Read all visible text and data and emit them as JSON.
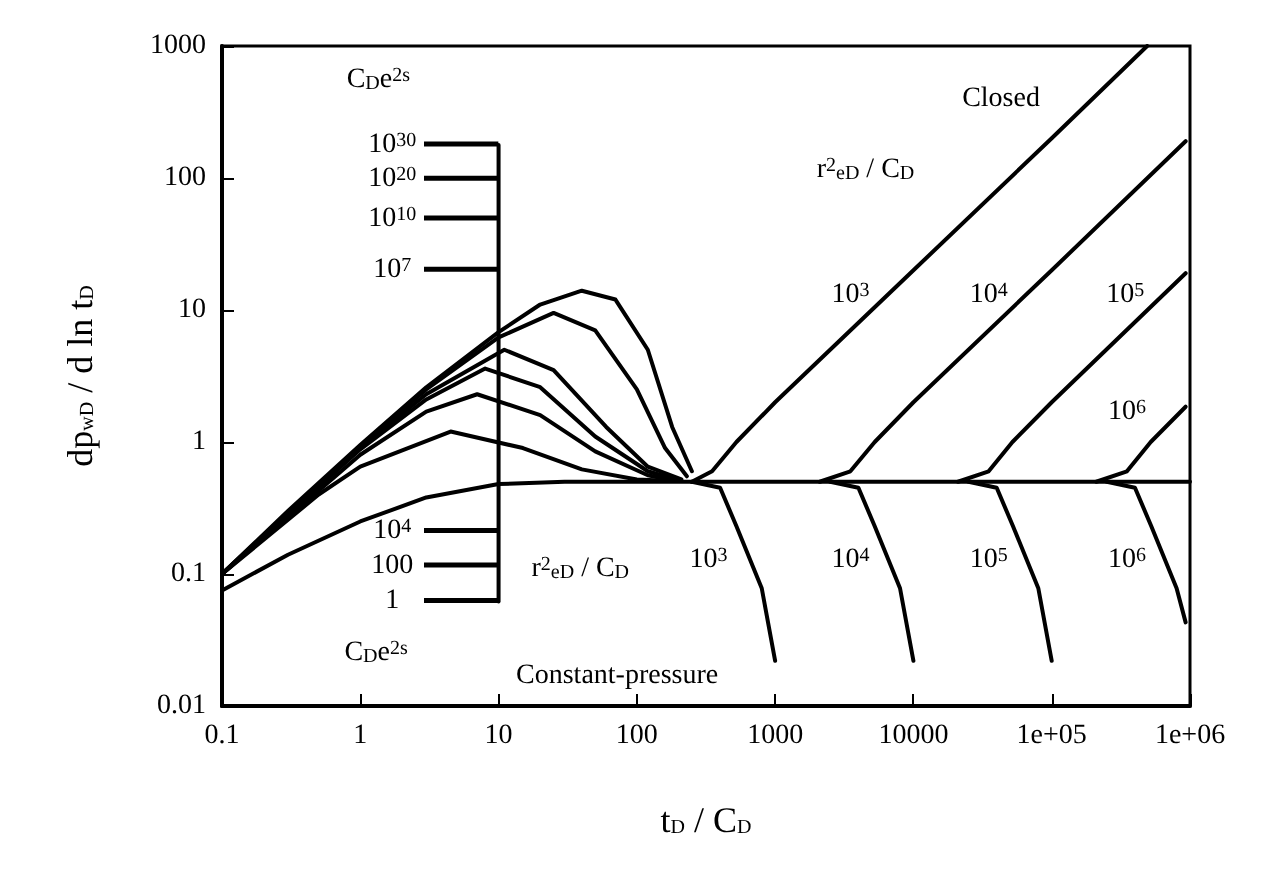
{
  "chart_data": {
    "type": "line",
    "xlabel": "t$_{D}$ / C$_{D}$",
    "ylabel": "dp$_{wD}$ / d ln t$_{D}$",
    "log": "xy",
    "grid": false,
    "marker": "none",
    "line_style": "solid",
    "xlim": [
      0.1,
      1000000
    ],
    "ylim": [
      0.01,
      1000
    ],
    "xticks": [
      0.1,
      1,
      10,
      100,
      1000,
      10000,
      {
        "value": 100000,
        "label": "1e+05"
      },
      {
        "value": 1000000,
        "label": "1e+06"
      }
    ],
    "yticks": [
      0.01,
      0.1,
      1,
      10,
      100,
      1000
    ],
    "series": [
      {
        "color": "#000000",
        "x": [
          0.1,
          0.3,
          1,
          3,
          10,
          20,
          40,
          70,
          120,
          180,
          250
        ],
        "values": [
          0.1,
          0.3,
          0.95,
          2.6,
          6.8,
          11,
          14,
          12,
          5,
          1.3,
          0.6
        ]
      },
      {
        "color": "#000000",
        "x": [
          0.1,
          1,
          3,
          10,
          25,
          50,
          100,
          160,
          230
        ],
        "values": [
          0.1,
          0.93,
          2.5,
          6.2,
          9.5,
          7,
          2.5,
          0.9,
          0.55
        ]
      },
      {
        "color": "#000000",
        "x": [
          0.1,
          1,
          3,
          11,
          25,
          60,
          120,
          210
        ],
        "values": [
          0.1,
          0.9,
          2.3,
          5,
          3.5,
          1.3,
          0.65,
          0.52
        ]
      },
      {
        "color": "#000000",
        "x": [
          0.1,
          1,
          3,
          8,
          20,
          50,
          120,
          190
        ],
        "values": [
          0.1,
          0.88,
          2.1,
          3.6,
          2.6,
          1.1,
          0.6,
          0.52
        ]
      },
      {
        "color": "#000000",
        "x": [
          0.1,
          1,
          3,
          7,
          20,
          50,
          120,
          170
        ],
        "values": [
          0.1,
          0.8,
          1.7,
          2.3,
          1.6,
          0.85,
          0.56,
          0.52
        ]
      },
      {
        "color": "#000000",
        "x": [
          0.1,
          0.5,
          1,
          4.5,
          15,
          40,
          100,
          150
        ],
        "values": [
          0.1,
          0.4,
          0.65,
          1.2,
          0.9,
          0.62,
          0.52,
          0.51
        ]
      },
      {
        "color": "#000000",
        "x": [
          0.1,
          0.3,
          1,
          3,
          10,
          30,
          300,
          1000000
        ],
        "values": [
          0.075,
          0.14,
          0.25,
          0.38,
          0.48,
          0.5,
          0.5,
          0.5
        ]
      },
      {
        "color": "#000000",
        "x": [
          250,
          350,
          525,
          1000,
          10000,
          100000,
          490000
        ],
        "values": [
          0.5,
          0.6,
          1,
          2,
          20,
          200,
          1000
        ]
      },
      {
        "color": "#000000",
        "x": [
          2100,
          3500,
          5250,
          10000,
          100000,
          930000
        ],
        "values": [
          0.5,
          0.6,
          1,
          2,
          20,
          190
        ]
      },
      {
        "color": "#000000",
        "x": [
          21000,
          35000,
          52000,
          100000,
          930000
        ],
        "values": [
          0.5,
          0.6,
          1,
          2,
          19
        ]
      },
      {
        "color": "#000000",
        "x": [
          210000,
          350000,
          520000,
          930000
        ],
        "values": [
          0.5,
          0.6,
          1,
          1.85
        ]
      },
      {
        "color": "#000000",
        "x": [
          250,
          400,
          525,
          800,
          1000
        ],
        "values": [
          0.5,
          0.45,
          0.23,
          0.078,
          0.022
        ]
      },
      {
        "color": "#000000",
        "x": [
          2500,
          4000,
          5250,
          8000,
          10000
        ],
        "values": [
          0.5,
          0.45,
          0.23,
          0.078,
          0.022
        ]
      },
      {
        "color": "#000000",
        "x": [
          25000,
          40000,
          52500,
          80000,
          100000
        ],
        "values": [
          0.5,
          0.45,
          0.23,
          0.078,
          0.022
        ]
      },
      {
        "color": "#000000",
        "x": [
          250000,
          400000,
          525000,
          800000,
          930000
        ],
        "values": [
          0.5,
          0.45,
          0.23,
          0.078,
          0.043
        ]
      },
      {
        "color": "#000000",
        "x": [
          10,
          10
        ],
        "values": [
          0.062,
          178
        ]
      }
    ],
    "annotations": [
      "C$_{D}$e$^{2s}$",
      "10$^{30}$",
      "10$^{20}$",
      "10$^{10}$",
      "10$^{7}$",
      "10$^{4}$",
      "100",
      "1",
      "C$_{D}$e$^{2s}$",
      "r$^{2}$$_{eD}$ / C$_{D}$",
      "r$^{2}$$_{eD}$ / C$_{D}$",
      "Closed",
      "Constant-pressure",
      "10$^{3}$",
      "10$^{4}$",
      "10$^{5}$",
      "10$^{6}$",
      "10$^{3}$",
      "10$^{4}$",
      "10$^{5}$",
      "10$^{6}$"
    ]
  }
}
